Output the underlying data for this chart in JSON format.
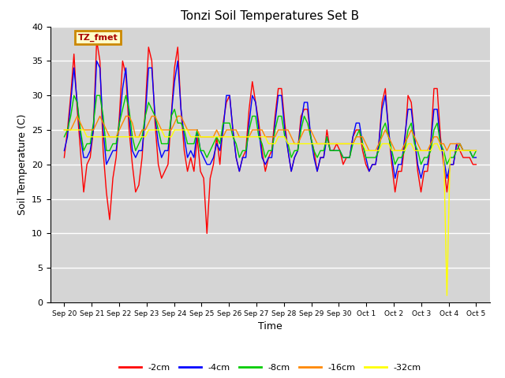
{
  "title": "Tonzi Soil Temperatures Set B",
  "xlabel": "Time",
  "ylabel": "Soil Temperature (C)",
  "ylim": [
    0,
    40
  ],
  "yticks": [
    0,
    5,
    10,
    15,
    20,
    25,
    30,
    35,
    40
  ],
  "facecolor": "#d5d5d5",
  "legend_label": "TZ_fmet",
  "series_colors": {
    "-2cm": "#ff0000",
    "-4cm": "#0000ff",
    "-8cm": "#00cc00",
    "-16cm": "#ff8800",
    "-32cm": "#ffff00"
  },
  "x_tick_labels": [
    "Sep 20",
    "Sep 21",
    "Sep 22",
    "Sep 23",
    "Sep 24",
    "Sep 25",
    "Sep 26",
    "Sep 27",
    "Sep 28",
    "Sep 29",
    "Sep 30",
    "Oct 1",
    "Oct 2",
    "Oct 3",
    "Oct 4",
    "Oct 5"
  ],
  "data": {
    "-2cm": [
      21,
      25,
      30,
      36,
      28,
      22,
      16,
      20,
      21,
      25,
      38,
      35,
      22,
      16,
      12,
      18,
      21,
      27,
      35,
      33,
      25,
      20,
      16,
      17,
      21,
      28,
      37,
      35,
      26,
      20,
      18,
      19,
      20,
      27,
      34,
      37,
      28,
      22,
      19,
      21,
      19,
      24,
      19,
      18,
      10,
      18,
      20,
      24,
      20,
      26,
      29,
      30,
      25,
      21,
      19,
      21,
      22,
      28,
      32,
      29,
      26,
      22,
      19,
      21,
      22,
      27,
      31,
      31,
      26,
      22,
      19,
      21,
      22,
      27,
      28,
      28,
      24,
      22,
      19,
      21,
      21,
      25,
      22,
      22,
      23,
      22,
      20,
      21,
      21,
      24,
      25,
      25,
      22,
      20,
      19,
      20,
      20,
      23,
      29,
      31,
      25,
      20,
      16,
      19,
      19,
      23,
      30,
      29,
      24,
      19,
      16,
      19,
      19,
      23,
      31,
      31,
      24,
      20,
      16,
      20,
      20,
      23,
      22,
      21,
      21,
      21,
      20,
      20
    ],
    "-4cm": [
      22,
      24,
      29,
      34,
      29,
      24,
      21,
      21,
      22,
      25,
      35,
      34,
      25,
      20,
      21,
      22,
      22,
      26,
      31,
      34,
      27,
      22,
      21,
      22,
      22,
      27,
      34,
      34,
      27,
      23,
      21,
      22,
      22,
      27,
      32,
      35,
      28,
      24,
      21,
      22,
      21,
      25,
      22,
      21,
      20,
      20,
      21,
      23,
      22,
      25,
      30,
      30,
      25,
      21,
      19,
      21,
      21,
      26,
      30,
      29,
      25,
      21,
      20,
      21,
      21,
      26,
      30,
      30,
      25,
      22,
      19,
      21,
      22,
      26,
      29,
      29,
      24,
      21,
      19,
      21,
      21,
      24,
      22,
      22,
      22,
      22,
      21,
      21,
      21,
      24,
      26,
      26,
      23,
      21,
      19,
      20,
      20,
      23,
      28,
      30,
      25,
      21,
      18,
      20,
      20,
      24,
      28,
      28,
      24,
      20,
      18,
      20,
      20,
      23,
      28,
      28,
      23,
      21,
      18,
      20,
      20,
      23,
      23,
      22,
      22,
      22,
      21,
      21
    ],
    "-8cm": [
      24,
      25,
      27,
      30,
      29,
      25,
      22,
      23,
      23,
      26,
      30,
      30,
      27,
      22,
      22,
      23,
      23,
      26,
      28,
      30,
      28,
      24,
      22,
      23,
      24,
      27,
      29,
      28,
      27,
      25,
      23,
      23,
      23,
      27,
      28,
      26,
      26,
      25,
      23,
      23,
      23,
      25,
      22,
      22,
      21,
      22,
      23,
      24,
      23,
      26,
      26,
      26,
      24,
      23,
      21,
      22,
      22,
      25,
      27,
      27,
      24,
      23,
      21,
      22,
      22,
      25,
      27,
      27,
      24,
      23,
      21,
      22,
      22,
      25,
      27,
      26,
      24,
      22,
      21,
      22,
      22,
      24,
      22,
      22,
      22,
      22,
      21,
      21,
      21,
      23,
      24,
      25,
      23,
      21,
      21,
      21,
      21,
      22,
      25,
      26,
      24,
      22,
      20,
      21,
      21,
      22,
      25,
      26,
      23,
      22,
      20,
      21,
      21,
      22,
      25,
      26,
      23,
      22,
      20,
      21,
      21,
      22,
      23,
      22,
      22,
      22,
      21,
      22
    ],
    "-16cm": [
      25,
      25,
      25,
      26,
      27,
      26,
      25,
      25,
      25,
      25,
      26,
      27,
      26,
      25,
      24,
      24,
      24,
      25,
      26,
      27,
      27,
      26,
      24,
      24,
      25,
      25,
      26,
      27,
      27,
      26,
      25,
      25,
      25,
      25,
      26,
      27,
      27,
      26,
      25,
      25,
      25,
      25,
      24,
      24,
      24,
      24,
      24,
      25,
      24,
      24,
      25,
      25,
      25,
      25,
      24,
      24,
      24,
      24,
      25,
      25,
      25,
      25,
      24,
      24,
      24,
      24,
      25,
      25,
      25,
      25,
      24,
      23,
      23,
      24,
      25,
      25,
      25,
      24,
      23,
      23,
      23,
      23,
      23,
      23,
      23,
      23,
      23,
      23,
      23,
      23,
      24,
      24,
      24,
      23,
      22,
      22,
      22,
      23,
      24,
      25,
      24,
      23,
      22,
      22,
      22,
      23,
      24,
      25,
      24,
      23,
      22,
      22,
      22,
      23,
      24,
      24,
      23,
      23,
      22,
      23,
      23,
      23,
      23,
      22,
      22,
      22,
      22,
      22
    ],
    "-32cm": [
      25,
      25,
      25,
      25,
      25,
      25,
      25,
      24,
      24,
      24,
      24,
      24,
      24,
      24,
      24,
      24,
      24,
      24,
      24,
      24,
      24,
      24,
      24,
      24,
      24,
      24,
      25,
      25,
      25,
      25,
      25,
      24,
      24,
      24,
      25,
      25,
      25,
      25,
      25,
      24,
      24,
      24,
      24,
      24,
      24,
      24,
      24,
      24,
      24,
      24,
      24,
      24,
      24,
      24,
      24,
      24,
      24,
      24,
      24,
      24,
      24,
      24,
      24,
      23,
      23,
      23,
      24,
      24,
      24,
      23,
      23,
      23,
      23,
      23,
      23,
      23,
      23,
      23,
      23,
      23,
      23,
      23,
      23,
      23,
      23,
      23,
      23,
      23,
      23,
      23,
      23,
      23,
      23,
      22,
      22,
      22,
      22,
      22,
      23,
      23,
      23,
      22,
      22,
      22,
      22,
      22,
      23,
      23,
      22,
      22,
      22,
      22,
      22,
      22,
      23,
      23,
      22,
      22,
      1,
      22,
      22,
      22,
      22,
      22,
      22,
      22,
      22,
      22
    ]
  }
}
